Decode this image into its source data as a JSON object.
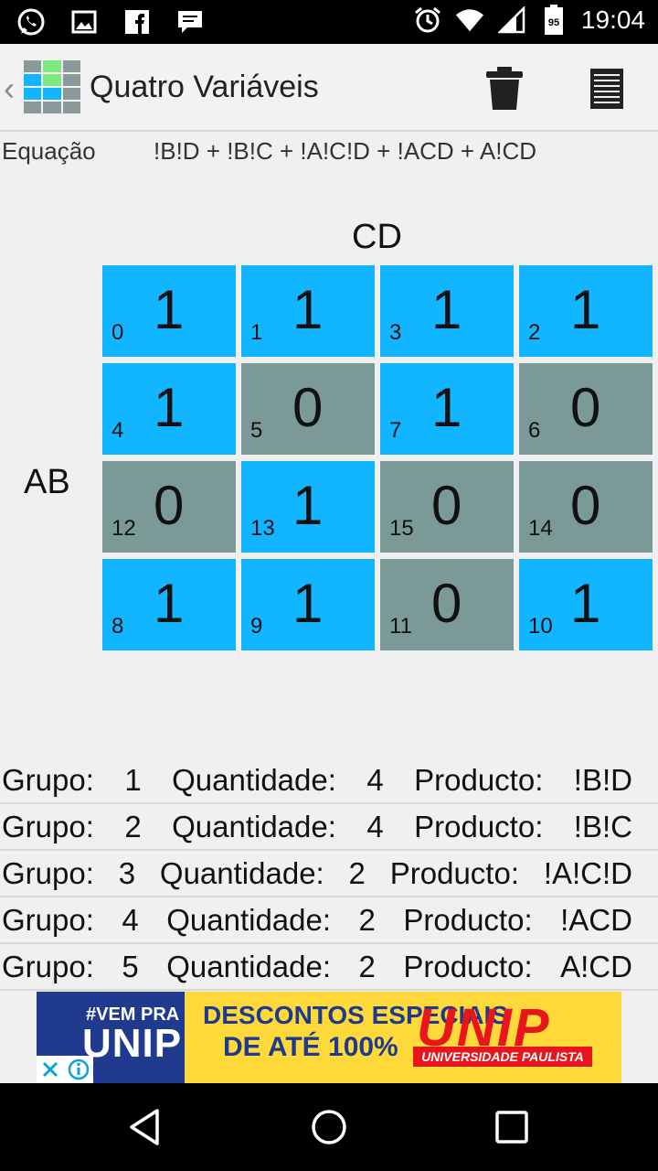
{
  "status_bar": {
    "time": "19:04",
    "battery_level": "95",
    "left_icons": [
      "whatsapp-icon",
      "image-icon",
      "facebook-icon",
      "message-icon"
    ],
    "right_icons": [
      "alarm-icon",
      "wifi-icon",
      "signal-icon",
      "battery-icon"
    ]
  },
  "action_bar": {
    "title": "Quatro Variáveis",
    "back_glyph": "‹",
    "logo_colors": [
      "#8a9a9a",
      "#7ee87e",
      "#8a9a9a",
      "#12b5ff",
      "#7ee87e",
      "#8a9a9a",
      "#12b5ff",
      "#12b5ff",
      "#8a9a9a",
      "#8a9a9a",
      "#8a9a9a",
      "#8a9a9a"
    ]
  },
  "equation": {
    "label": "Equação",
    "value": "!B!D + !B!C + !A!C!D + !ACD + A!CD"
  },
  "kmap": {
    "col_var": "CD",
    "row_var": "AB",
    "cells": [
      {
        "index": "0",
        "value": "1"
      },
      {
        "index": "1",
        "value": "1"
      },
      {
        "index": "3",
        "value": "1"
      },
      {
        "index": "2",
        "value": "1"
      },
      {
        "index": "4",
        "value": "1"
      },
      {
        "index": "5",
        "value": "0"
      },
      {
        "index": "7",
        "value": "1"
      },
      {
        "index": "6",
        "value": "0"
      },
      {
        "index": "12",
        "value": "0"
      },
      {
        "index": "13",
        "value": "1"
      },
      {
        "index": "15",
        "value": "0"
      },
      {
        "index": "14",
        "value": "0"
      },
      {
        "index": "8",
        "value": "1"
      },
      {
        "index": "9",
        "value": "1"
      },
      {
        "index": "11",
        "value": "0"
      },
      {
        "index": "10",
        "value": "1"
      }
    ],
    "colors": {
      "one": "#12b5ff",
      "zero": "#7b9996"
    }
  },
  "groups": {
    "group_label": "Grupo:",
    "quantity_label": "Quantidade:",
    "product_label": "Producto:",
    "rows": [
      {
        "group": "1",
        "quantity": "4",
        "product": "!B!D"
      },
      {
        "group": "2",
        "quantity": "4",
        "product": "!B!C"
      },
      {
        "group": "3",
        "quantity": "2",
        "product": "!A!C!D"
      },
      {
        "group": "4",
        "quantity": "2",
        "product": "!ACD"
      },
      {
        "group": "5",
        "quantity": "2",
        "product": "A!CD"
      }
    ]
  },
  "ad": {
    "vem_pra": "#VEM PRA",
    "unip_small": "UNIP",
    "line1": "DESCONTOS ESPECIAIS",
    "line2": "DE ATÉ 100%",
    "brand": "UNIP",
    "university": "UNIVERSIDADE PAULISTA"
  },
  "nav": {
    "buttons": [
      "back-icon",
      "home-icon",
      "recents-icon"
    ]
  }
}
